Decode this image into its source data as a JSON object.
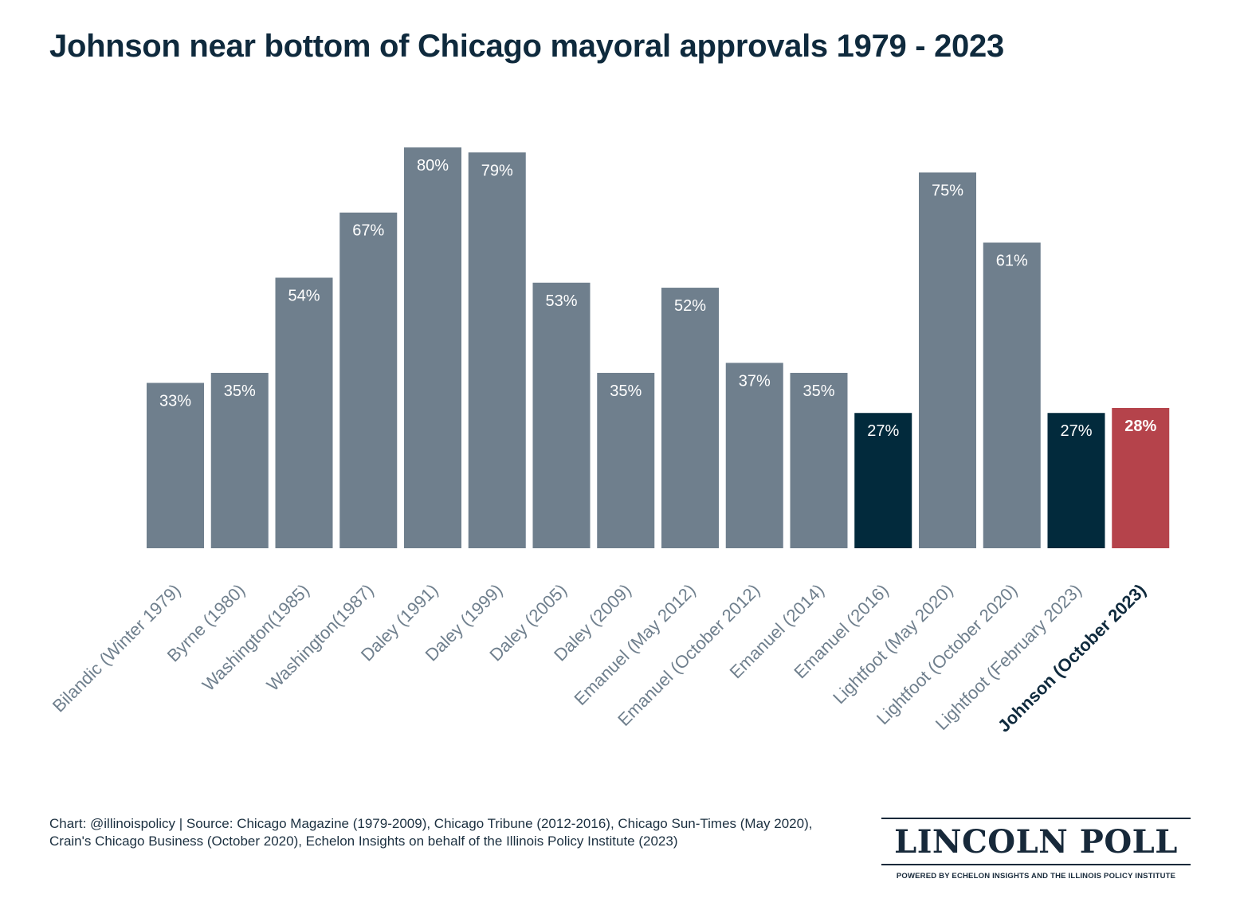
{
  "title": "Johnson near bottom of Chicago mayoral approvals 1979 - 2023",
  "source_text": "Chart: @illinoispolicy | Source: Chicago Magazine (1979-2009), Chicago Tribune (2012-2016), Chicago Sun-Times (May 2020), Crain's Chicago Business (October 2020), Echelon Insights on behalf of the Illinois Policy Institute (2023)",
  "logo": {
    "name": "LINCOLN POLL",
    "tagline": "POWERED BY ECHELON INSIGHTS AND THE ILLINOIS POLICY INSTITUTE"
  },
  "colors": {
    "default_bar": "#6f7f8d",
    "low_bar": "#022a3c",
    "highlight_bar": "#b5434b",
    "title": "#0f2a3d",
    "value_label": "#ffffff"
  },
  "chart_data": {
    "type": "bar",
    "title": "Johnson near bottom of Chicago mayoral approvals 1979 - 2023",
    "xlabel": "",
    "ylabel": "",
    "ylim": [
      0,
      80
    ],
    "grid": false,
    "legend": "none",
    "categories": [
      "Bilandic (Winter 1979)",
      "Byrne (1980)",
      "Washington(1985)",
      "Washington(1987)",
      "Daley (1991)",
      "Daley (1999)",
      "Daley (2005)",
      "Daley (2009)",
      "Emanuel (May 2012)",
      "Emanuel (October 2012)",
      "Emanuel (2014)",
      "Emanuel (2016)",
      "Lightfoot (May 2020)",
      "Lightfoot (October 2020)",
      "Lightfoot (February 2023)",
      "Johnson (October 2023)"
    ],
    "values": [
      33,
      35,
      54,
      67,
      80,
      79,
      53,
      35,
      52,
      37,
      35,
      27,
      75,
      61,
      27,
      28
    ],
    "value_labels": [
      "33%",
      "35%",
      "54%",
      "67%",
      "80%",
      "79%",
      "53%",
      "35%",
      "52%",
      "37%",
      "35%",
      "27%",
      "75%",
      "61%",
      "27%",
      "28%"
    ],
    "bar_styles": [
      "default",
      "default",
      "default",
      "default",
      "default",
      "default",
      "default",
      "default",
      "default",
      "default",
      "default",
      "low",
      "default",
      "default",
      "low",
      "highlight"
    ]
  }
}
